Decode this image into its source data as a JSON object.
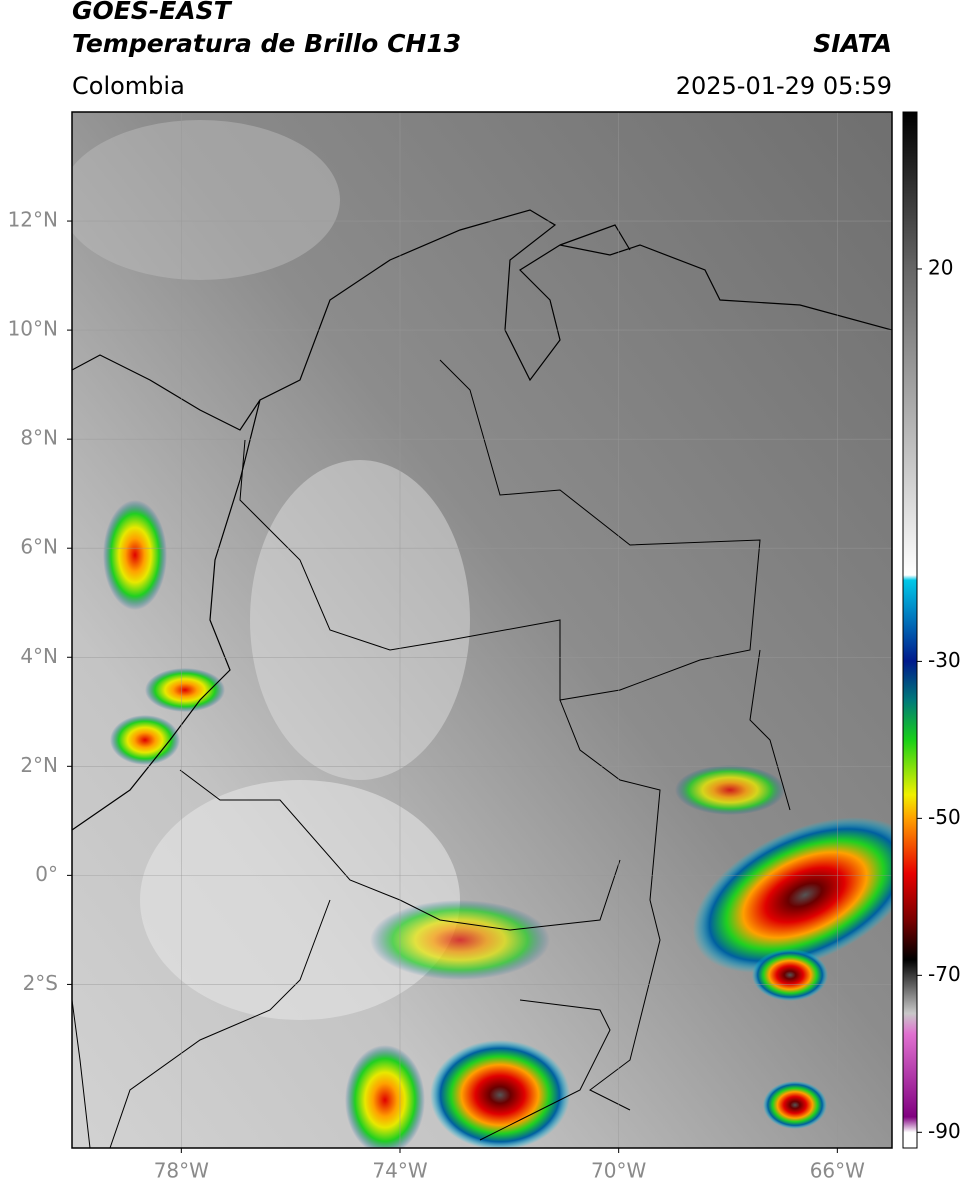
{
  "header": {
    "title": "GOES-EAST",
    "subtitle": "Temperatura de Brillo CH13",
    "region": "Colombia",
    "source": "SIATA",
    "datetime": "2025-01-29 05:59"
  },
  "map": {
    "xlim": [
      -80,
      -65
    ],
    "ylim": [
      -5,
      14
    ],
    "xticks": [
      {
        "value": -78,
        "label": "78°W"
      },
      {
        "value": -74,
        "label": "74°W"
      },
      {
        "value": -70,
        "label": "70°W"
      },
      {
        "value": -66,
        "label": "66°W"
      }
    ],
    "yticks": [
      {
        "value": 12,
        "label": "12°N"
      },
      {
        "value": 10,
        "label": "10°N"
      },
      {
        "value": 8,
        "label": "8°N"
      },
      {
        "value": 6,
        "label": "6°N"
      },
      {
        "value": 4,
        "label": "4°N"
      },
      {
        "value": 2,
        "label": "2°N"
      },
      {
        "value": 0,
        "label": "0°"
      },
      {
        "value": -2,
        "label": "2°S"
      }
    ],
    "grid": true
  },
  "colorbar": {
    "lim": [
      -92,
      40
    ],
    "ticks": [
      20,
      -30,
      -50,
      -70,
      -90
    ]
  }
}
